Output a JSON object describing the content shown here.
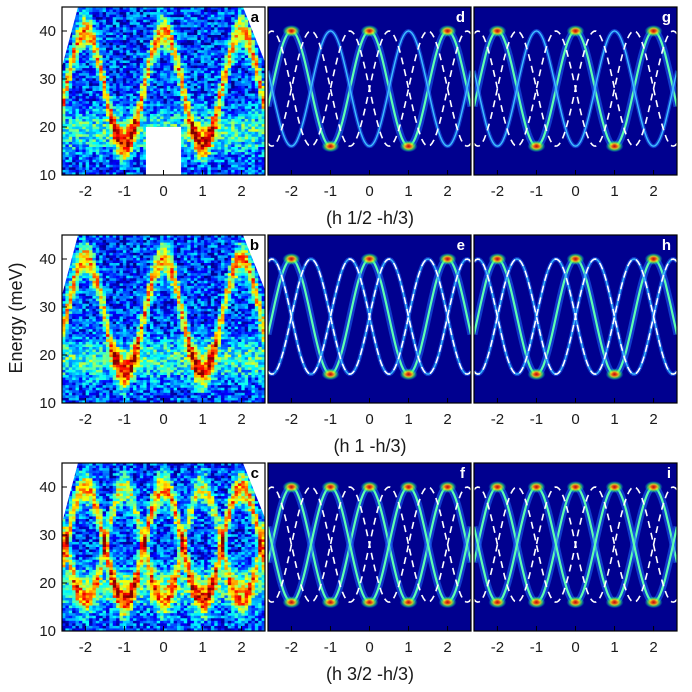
{
  "figure": {
    "ylabel": "Energy (meV)",
    "row_titles": [
      "(h 1/2 -h/3)",
      "(h 1 -h/3)",
      "(h 3/2 -h/3)"
    ]
  },
  "chart_data": [
    {
      "type": "heatmap",
      "panel": "a",
      "kind": "measured",
      "xlim": [
        -2.6,
        2.6
      ],
      "ylim": [
        10,
        45
      ],
      "xticks": [
        -2,
        -1,
        0,
        1,
        2
      ],
      "xtick_labels": [
        "-2",
        "-1",
        "0",
        "1",
        "2"
      ],
      "yticks": [
        10,
        20,
        30,
        40
      ],
      "ytick_labels": [
        "10",
        "20",
        "30",
        "40"
      ],
      "xlabel": "",
      "ylabel": "Energy (meV)",
      "row": 0,
      "col": 0
    },
    {
      "type": "heatmap",
      "panel": "d",
      "kind": "model",
      "xlim": [
        -2.6,
        2.6
      ],
      "ylim": [
        10,
        45
      ],
      "xticks": [
        -2,
        -1,
        0,
        1,
        2
      ],
      "xtick_labels": [
        "-2",
        "-1",
        "0",
        "1",
        "2"
      ],
      "xlabel": "(h 1/2 -h/3)",
      "row": 0,
      "col": 1
    },
    {
      "type": "heatmap",
      "panel": "g",
      "kind": "model",
      "xlim": [
        -2.6,
        2.6
      ],
      "ylim": [
        10,
        45
      ],
      "xticks": [
        -2,
        -1,
        0,
        1,
        2
      ],
      "xtick_labels": [
        "-2",
        "-1",
        "0",
        "1",
        "2"
      ],
      "xlabel": "",
      "row": 0,
      "col": 2
    },
    {
      "type": "heatmap",
      "panel": "b",
      "kind": "measured",
      "xlim": [
        -2.6,
        2.6
      ],
      "ylim": [
        10,
        45
      ],
      "xticks": [
        -2,
        -1,
        0,
        1,
        2
      ],
      "xtick_labels": [
        "-2",
        "-1",
        "0",
        "1",
        "2"
      ],
      "yticks": [
        10,
        20,
        30,
        40
      ],
      "ytick_labels": [
        "10",
        "20",
        "30",
        "40"
      ],
      "xlabel": "",
      "ylabel": "Energy (meV)",
      "row": 1,
      "col": 0
    },
    {
      "type": "heatmap",
      "panel": "e",
      "kind": "model",
      "xlim": [
        -2.6,
        2.6
      ],
      "ylim": [
        10,
        45
      ],
      "xticks": [
        -2,
        -1,
        0,
        1,
        2
      ],
      "xtick_labels": [
        "-2",
        "-1",
        "0",
        "1",
        "2"
      ],
      "xlabel": "(h 1 -h/3)",
      "row": 1,
      "col": 1
    },
    {
      "type": "heatmap",
      "panel": "h",
      "kind": "model",
      "xlim": [
        -2.6,
        2.6
      ],
      "ylim": [
        10,
        45
      ],
      "xticks": [
        -2,
        -1,
        0,
        1,
        2
      ],
      "xtick_labels": [
        "-2",
        "-1",
        "0",
        "1",
        "2"
      ],
      "xlabel": "",
      "row": 1,
      "col": 2
    },
    {
      "type": "heatmap",
      "panel": "c",
      "kind": "measured",
      "xlim": [
        -2.6,
        2.6
      ],
      "ylim": [
        10,
        45
      ],
      "xticks": [
        -2,
        -1,
        0,
        1,
        2
      ],
      "xtick_labels": [
        "-2",
        "-1",
        "0",
        "1",
        "2"
      ],
      "yticks": [
        10,
        20,
        30,
        40
      ],
      "ytick_labels": [
        "10",
        "20",
        "30",
        "40"
      ],
      "xlabel": "",
      "ylabel": "Energy (meV)",
      "row": 2,
      "col": 0
    },
    {
      "type": "heatmap",
      "panel": "f",
      "kind": "model",
      "xlim": [
        -2.6,
        2.6
      ],
      "ylim": [
        10,
        45
      ],
      "xticks": [
        -2,
        -1,
        0,
        1,
        2
      ],
      "xtick_labels": [
        "-2",
        "-1",
        "0",
        "1",
        "2"
      ],
      "xlabel": "(h 3/2 -h/3)",
      "row": 2,
      "col": 1
    },
    {
      "type": "heatmap",
      "panel": "i",
      "kind": "model",
      "xlim": [
        -2.6,
        2.6
      ],
      "ylim": [
        10,
        45
      ],
      "xticks": [
        -2,
        -1,
        0,
        1,
        2
      ],
      "xtick_labels": [
        "-2",
        "-1",
        "0",
        "1",
        "2"
      ],
      "xlabel": "",
      "row": 2,
      "col": 2
    }
  ],
  "dispersion": {
    "band_min_meV": 16,
    "band_max_meV": 40,
    "period_h": 2
  }
}
